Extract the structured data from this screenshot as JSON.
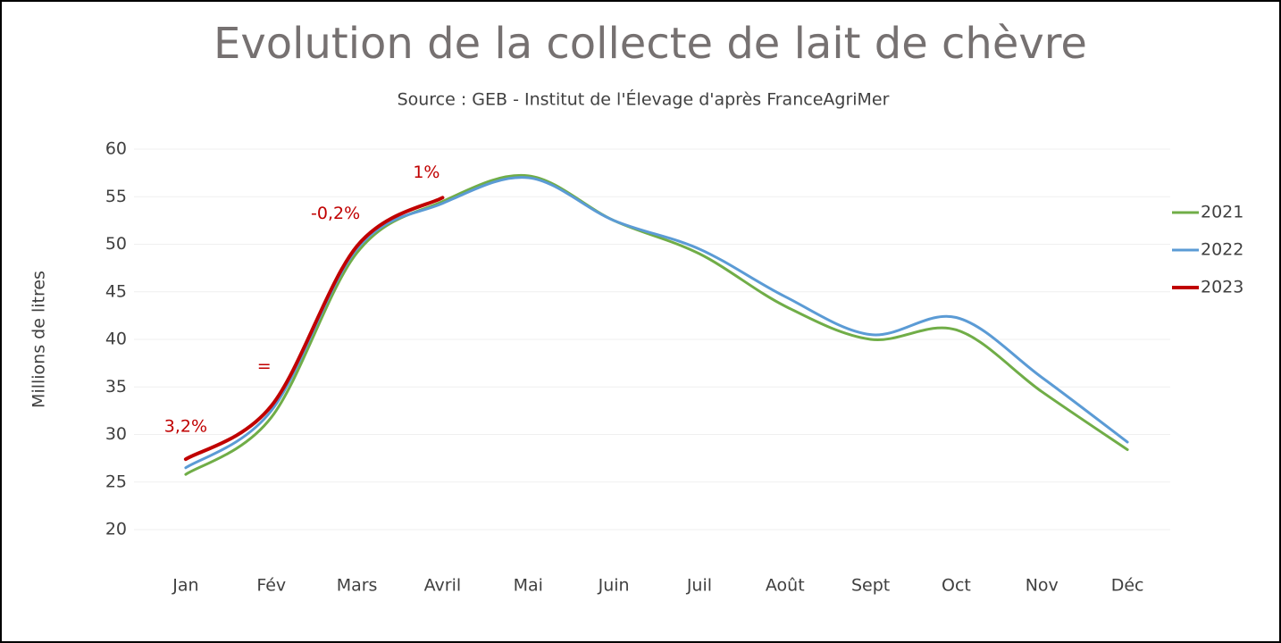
{
  "chart_data": {
    "type": "line",
    "title": "Evolution de la collecte de lait de chèvre",
    "subtitle": "Source : GEB - Institut de l'Élevage d'après FranceAgriMer",
    "y_label": "Millions de litres",
    "categories": [
      "Jan",
      "Fév",
      "Mars",
      "Avril",
      "Mai",
      "Juin",
      "Juil",
      "Août",
      "Sept",
      "Oct",
      "Nov",
      "Déc"
    ],
    "series": [
      {
        "name": "2021",
        "color": "#70ad47",
        "values": [
          25.8,
          31.8,
          49.1,
          54.5,
          57.2,
          52.5,
          49.0,
          43.5,
          40.0,
          41.0,
          34.5,
          28.4
        ]
      },
      {
        "name": "2022",
        "color": "#5b9bd5",
        "values": [
          26.5,
          32.5,
          49.5,
          54.3,
          57.0,
          52.5,
          49.5,
          44.5,
          40.5,
          42.3,
          36.0,
          29.2
        ]
      },
      {
        "name": "2023",
        "color": "#c00000",
        "values": [
          27.4,
          33.0,
          49.8,
          54.9,
          null,
          null,
          null,
          null,
          null,
          null,
          null,
          null
        ]
      }
    ],
    "annotations": [
      "3,2%",
      "=",
      "-0,2%",
      "1%"
    ],
    "annotation_color": "#c00000",
    "ylim": [
      20,
      60
    ],
    "yticks": [
      20,
      25,
      30,
      35,
      40,
      45,
      50,
      55,
      60
    ],
    "grid": true,
    "legend": "right"
  }
}
